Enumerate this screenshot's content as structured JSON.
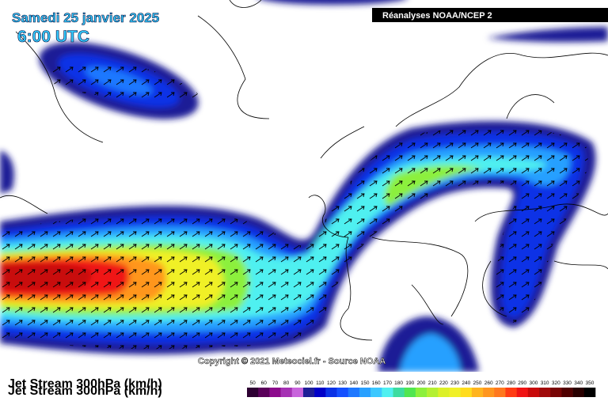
{
  "header": {
    "date": "Samedi 25 janvier 2025",
    "time": "6:00 UTC",
    "source": "Réanalyses NOAA/NCEP 2"
  },
  "footer": {
    "copyright": "Copyright © 2021 Meteociel.fr - Source NOAA"
  },
  "legend": {
    "title": "Jet Stream 300hPa (km/h)",
    "levels": [
      50,
      60,
      70,
      80,
      90,
      100,
      110,
      120,
      130,
      140,
      150,
      160,
      170,
      180,
      190,
      200,
      210,
      220,
      230,
      240,
      250,
      260,
      270,
      280,
      290,
      300,
      310,
      320,
      330,
      340,
      350
    ],
    "colors": [
      "#2d0032",
      "#5a005a",
      "#8c0a8c",
      "#a632b4",
      "#c864dc",
      "#1e1e96",
      "#0000c8",
      "#0a32e6",
      "#1450ff",
      "#1e78ff",
      "#28a0ff",
      "#3cc8ff",
      "#50f0f0",
      "#3cdca0",
      "#50e650",
      "#8cf03c",
      "#b4f032",
      "#dcf028",
      "#f0f028",
      "#ffdc1e",
      "#ffb41e",
      "#ff961e",
      "#ff781e",
      "#ff3c14",
      "#f01414",
      "#c80a0a",
      "#a00a0a",
      "#780505",
      "#500000",
      "#280000",
      "#000000"
    ]
  }
}
